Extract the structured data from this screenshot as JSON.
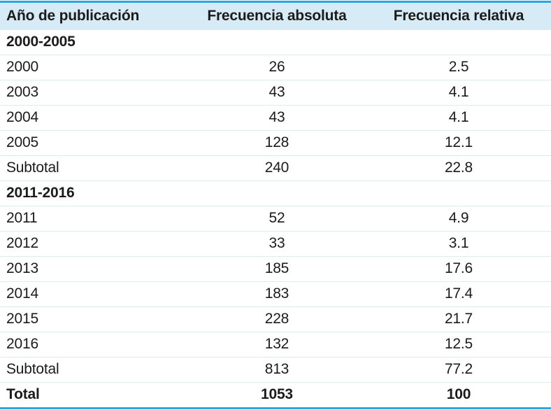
{
  "colors": {
    "accent_rule": "#28a8dd",
    "header_bg": "#d7ebf7",
    "row_divider": "#dcedf6",
    "text": "#1b1b1b"
  },
  "chart_data": {
    "type": "table",
    "title": "",
    "columns": [
      "Año de publicación",
      "Frecuencia absoluta",
      "Frecuencia relativa"
    ],
    "rows": [
      {
        "kind": "group",
        "label": "2000-2005",
        "absolute": "",
        "relative": ""
      },
      {
        "kind": "data",
        "label": "2000",
        "absolute": "26",
        "relative": "2.5"
      },
      {
        "kind": "data",
        "label": "2003",
        "absolute": "43",
        "relative": "4.1"
      },
      {
        "kind": "data",
        "label": "2004",
        "absolute": "43",
        "relative": "4.1"
      },
      {
        "kind": "data",
        "label": "2005",
        "absolute": "128",
        "relative": "12.1"
      },
      {
        "kind": "subtotal",
        "label": "Subtotal",
        "absolute": "240",
        "relative": "22.8"
      },
      {
        "kind": "group",
        "label": "2011-2016",
        "absolute": "",
        "relative": ""
      },
      {
        "kind": "data",
        "label": "2011",
        "absolute": "52",
        "relative": "4.9"
      },
      {
        "kind": "data",
        "label": "2012",
        "absolute": "33",
        "relative": "3.1"
      },
      {
        "kind": "data",
        "label": "2013",
        "absolute": "185",
        "relative": "17.6"
      },
      {
        "kind": "data",
        "label": "2014",
        "absolute": "183",
        "relative": "17.4"
      },
      {
        "kind": "data",
        "label": "2015",
        "absolute": "228",
        "relative": "21.7"
      },
      {
        "kind": "data",
        "label": "2016",
        "absolute": "132",
        "relative": "12.5"
      },
      {
        "kind": "subtotal",
        "label": "Subtotal",
        "absolute": "813",
        "relative": "77.2"
      },
      {
        "kind": "total",
        "label": "Total",
        "absolute": "1053",
        "relative": "100"
      }
    ],
    "summary": {
      "group_1_label": "2000-2005",
      "group_1_subtotal_absolute": 240,
      "group_1_subtotal_relative": 22.8,
      "group_2_label": "2011-2016",
      "group_2_subtotal_absolute": 813,
      "group_2_subtotal_relative": 77.2,
      "total_absolute": 1053,
      "total_relative": 100
    }
  }
}
